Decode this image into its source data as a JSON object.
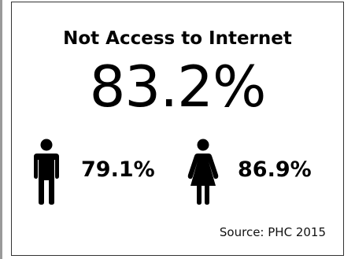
{
  "title": "Not Access to Internet",
  "overall_percent": "83.2%",
  "male": {
    "icon": "male-person-icon",
    "percent": "79.1%"
  },
  "female": {
    "icon": "female-person-icon",
    "percent": "86.9%"
  },
  "source": "Source: PHC 2015",
  "colors": {
    "text": "#000000",
    "border": "#333333",
    "background": "#ffffff"
  }
}
